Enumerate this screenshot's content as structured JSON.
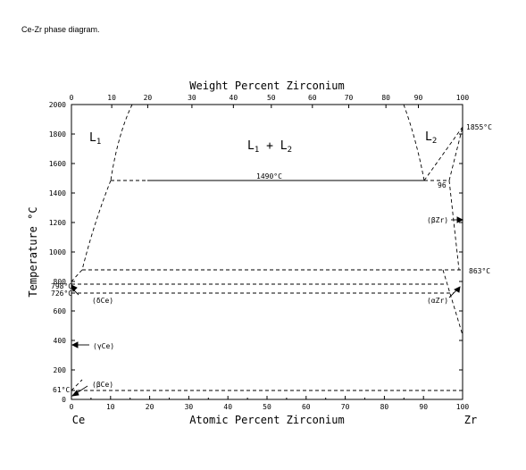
{
  "caption": "Ce-Zr phase diagram.",
  "top_axis": {
    "label": "Weight Percent Zirconium",
    "ticks": [
      {
        "label": "0",
        "at": 0
      },
      {
        "label": "10",
        "at": 10.3
      },
      {
        "label": "20",
        "at": 19.5
      },
      {
        "label": "30",
        "at": 30.8
      },
      {
        "label": "40",
        "at": 41.4
      },
      {
        "label": "50",
        "at": 51.1
      },
      {
        "label": "60",
        "at": 61.6
      },
      {
        "label": "70",
        "at": 70.9
      },
      {
        "label": "80",
        "at": 80.4
      },
      {
        "label": "90",
        "at": 88.7
      },
      {
        "label": "100",
        "at": 100
      }
    ]
  },
  "bottom_axis": {
    "label": "Atomic Percent Zirconium",
    "left_element": "Ce",
    "right_element": "Zr",
    "ticks": [
      "0",
      "10",
      "20",
      "30",
      "40",
      "50",
      "60",
      "70",
      "80",
      "90",
      "100"
    ]
  },
  "left_axis": {
    "label": "Temperature °C",
    "ticks": [
      "0",
      "200",
      "400",
      "600",
      "800",
      "1000",
      "1200",
      "1400",
      "1600",
      "1800",
      "2000"
    ]
  },
  "annotations": {
    "left_temps": [
      "798°C",
      "726°C",
      "61°C"
    ],
    "ce_melt": "1855°C",
    "zr_transition": "863°C",
    "eutectic": "1490°C",
    "eutectic_comp": "96"
  },
  "phases": {
    "l1": "L",
    "l1_sub": "1",
    "l1_l2": "L",
    "l1_l2_sub1": "1",
    "l1_l2_plus": " + L",
    "l1_l2_sub2": "2",
    "l2": "L",
    "l2_sub": "2",
    "delta_ce": "(δCe)",
    "gamma_ce": "(γCe)",
    "beta_ce": "(βCe)",
    "alpha_zr": "(αZr)",
    "beta_zr": "(βZr)"
  }
}
